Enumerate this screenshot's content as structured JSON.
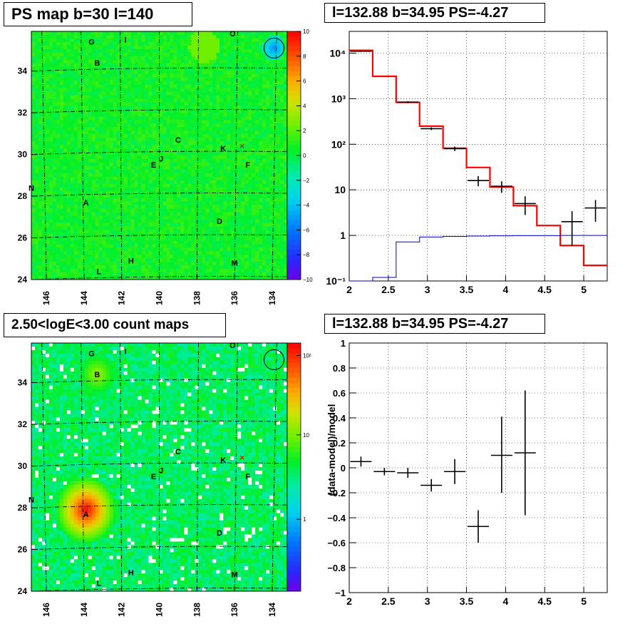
{
  "titles": {
    "map_top": "PS map b=30 l=140",
    "spec_top": "l=132.88 b=34.95 PS=-4.27",
    "map_bottom": "2.50<logE<3.00 count maps",
    "spec_bottom": "l=132.88 b=34.95 PS=-4.27"
  },
  "colors": {
    "data": "#000000",
    "model_total": "#ff0000",
    "model_ps": "#0000cc",
    "grid": "#000000"
  },
  "chart_data": [
    {
      "type": "heatmap",
      "title": "PS map b=30 l=140",
      "x_ticks": [
        "146",
        "144",
        "142",
        "140",
        "138",
        "136",
        "134"
      ],
      "y_ticks": [
        "24",
        "26",
        "28",
        "30",
        "32",
        "34"
      ],
      "xlim": [
        146.8,
        133.2
      ],
      "ylim": [
        24,
        35.9
      ],
      "colorbar_ticks": [
        "10",
        "8",
        "6",
        "4",
        "2",
        "0",
        "−2",
        "−4",
        "−6",
        "−8",
        "−10"
      ],
      "colorbar_range": [
        -10,
        10
      ],
      "labels": [
        {
          "text": "O",
          "l": 136.1,
          "b": 35.8
        },
        {
          "text": "G",
          "l": 143.6,
          "b": 35.4
        },
        {
          "text": "I",
          "l": 141.8,
          "b": 35.5
        },
        {
          "text": "B",
          "l": 143.3,
          "b": 34.4
        },
        {
          "text": "C",
          "l": 139.0,
          "b": 30.7
        },
        {
          "text": "K",
          "l": 136.6,
          "b": 30.3
        },
        {
          "text": "J",
          "l": 139.9,
          "b": 29.8
        },
        {
          "text": "E",
          "l": 140.3,
          "b": 29.5
        },
        {
          "text": "F",
          "l": 135.3,
          "b": 29.5
        },
        {
          "text": "N",
          "l": 146.8,
          "b": 28.4
        },
        {
          "text": "A",
          "l": 143.9,
          "b": 27.7
        },
        {
          "text": "D",
          "l": 136.8,
          "b": 26.8
        },
        {
          "text": "H",
          "l": 141.5,
          "b": 24.9
        },
        {
          "text": "L",
          "l": 143.2,
          "b": 24.4
        },
        {
          "text": "M",
          "l": 136.0,
          "b": 24.8
        }
      ],
      "markers": [
        {
          "shape": "x",
          "l": 135.6,
          "b": 30.4
        }
      ],
      "circle": {
        "l": 133.9,
        "b": 35.1
      },
      "field": "ps_map"
    },
    {
      "type": "line",
      "title": "l=132.88 b=34.95 PS=-4.27",
      "xlim": [
        2,
        5.3
      ],
      "ylim": [
        0.1,
        30000
      ],
      "log_y": true,
      "x_ticks": [
        "2",
        "2.5",
        "3",
        "3.5",
        "4",
        "4.5",
        "5"
      ],
      "y_ticks": [
        "10⁻¹",
        "1",
        "10",
        "10²",
        "10³",
        "10⁴"
      ],
      "grid": true,
      "bin_edges": [
        2.0,
        2.3,
        2.6,
        2.9,
        3.2,
        3.5,
        3.8,
        4.1,
        4.4,
        4.7,
        5.0,
        5.3
      ],
      "series": [
        {
          "key": "model_total",
          "values": [
            11500,
            3100,
            830,
            250,
            82,
            31,
            11.5,
            4.5,
            1.65,
            0.6,
            0.22
          ]
        },
        {
          "key": "model_ps",
          "values": [
            0.05,
            0.12,
            0.72,
            0.92,
            0.95,
            0.97,
            0.98,
            0.99,
            0.99,
            1.0,
            1.0
          ]
        },
        {
          "key": "data",
          "points": [
            {
              "x": 2.15,
              "y": 11000,
              "ylo": 10700,
              "yhi": 11300
            },
            {
              "x": 2.75,
              "y": 840,
              "ylo": 800,
              "yhi": 880
            },
            {
              "x": 3.05,
              "y": 220,
              "ylo": 205,
              "yhi": 235
            },
            {
              "x": 3.35,
              "y": 80,
              "ylo": 71,
              "yhi": 89
            },
            {
              "x": 3.65,
              "y": 16,
              "ylo": 12,
              "yhi": 20
            },
            {
              "x": 3.95,
              "y": 12,
              "ylo": 8.6,
              "yhi": 15.4
            },
            {
              "x": 4.25,
              "y": 5,
              "ylo": 2.8,
              "yhi": 7.2
            },
            {
              "x": 4.85,
              "y": 2,
              "ylo": 0.6,
              "yhi": 3.4
            },
            {
              "x": 5.15,
              "y": 4,
              "ylo": 2,
              "yhi": 6
            }
          ]
        }
      ]
    },
    {
      "type": "heatmap",
      "title": "2.50<logE<3.00 count maps",
      "x_ticks": [
        "146",
        "144",
        "142",
        "140",
        "138",
        "136",
        "134"
      ],
      "y_ticks": [
        "24",
        "26",
        "28",
        "30",
        "32",
        "34"
      ],
      "xlim": [
        146.8,
        133.2
      ],
      "ylim": [
        24,
        35.9
      ],
      "colorbar_ticks": [
        "10²",
        "10",
        "1"
      ],
      "colorbar_log": true,
      "labels": [
        {
          "text": "O",
          "l": 136.1,
          "b": 35.8
        },
        {
          "text": "G",
          "l": 143.6,
          "b": 35.4
        },
        {
          "text": "I",
          "l": 141.8,
          "b": 35.5
        },
        {
          "text": "B",
          "l": 143.3,
          "b": 34.4
        },
        {
          "text": "C",
          "l": 139.0,
          "b": 30.7
        },
        {
          "text": "K",
          "l": 136.6,
          "b": 30.3
        },
        {
          "text": "J",
          "l": 139.9,
          "b": 29.8
        },
        {
          "text": "E",
          "l": 140.3,
          "b": 29.5
        },
        {
          "text": "F",
          "l": 135.3,
          "b": 29.5
        },
        {
          "text": "N",
          "l": 146.8,
          "b": 28.4
        },
        {
          "text": "A",
          "l": 143.9,
          "b": 27.7
        },
        {
          "text": "D",
          "l": 136.8,
          "b": 26.8
        },
        {
          "text": "H",
          "l": 141.5,
          "b": 24.9
        },
        {
          "text": "L",
          "l": 143.2,
          "b": 24.4
        },
        {
          "text": "M",
          "l": 136.0,
          "b": 24.8
        }
      ],
      "markers": [
        {
          "shape": "x",
          "l": 135.6,
          "b": 30.4
        }
      ],
      "circle": {
        "l": 133.9,
        "b": 35.1
      },
      "field": "count_map"
    },
    {
      "type": "scatter",
      "title": "l=132.88 b=34.95 PS=-4.27",
      "ylabel": "(data-model)/model",
      "xlim": [
        2,
        5.3
      ],
      "ylim": [
        -1,
        1
      ],
      "x_ticks": [
        "2",
        "2.5",
        "3",
        "3.5",
        "4",
        "4.5",
        "5"
      ],
      "y_ticks": [
        "−1",
        "−0.8",
        "−0.6",
        "−0.4",
        "−0.2",
        "0",
        "0.2",
        "0.4",
        "0.6",
        "0.8",
        "1"
      ],
      "grid": true,
      "points": [
        {
          "x": 2.15,
          "y": 0.05,
          "ylo": 0.01,
          "yhi": 0.09
        },
        {
          "x": 2.45,
          "y": -0.03,
          "ylo": -0.06,
          "yhi": 0.0
        },
        {
          "x": 2.75,
          "y": -0.04,
          "ylo": -0.08,
          "yhi": 0.0
        },
        {
          "x": 3.05,
          "y": -0.14,
          "ylo": -0.19,
          "yhi": -0.09
        },
        {
          "x": 3.35,
          "y": -0.03,
          "ylo": -0.13,
          "yhi": 0.07
        },
        {
          "x": 3.65,
          "y": -0.47,
          "ylo": -0.6,
          "yhi": -0.34
        },
        {
          "x": 3.95,
          "y": 0.1,
          "ylo": -0.2,
          "yhi": 0.41
        },
        {
          "x": 4.25,
          "y": 0.12,
          "ylo": -0.38,
          "yhi": 0.62
        }
      ]
    }
  ]
}
